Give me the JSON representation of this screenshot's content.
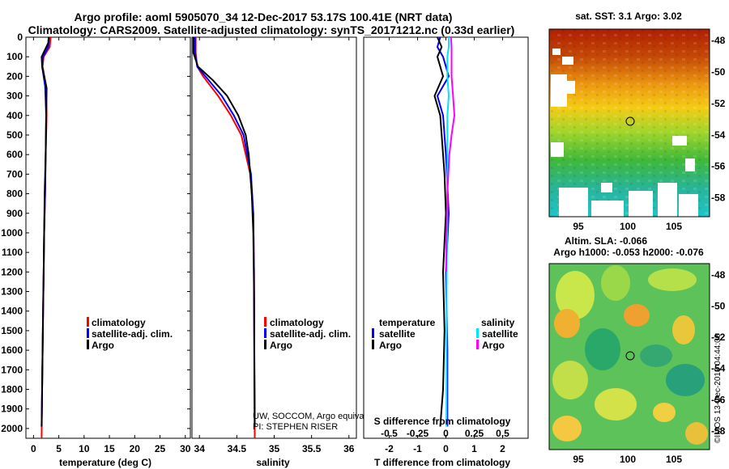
{
  "header": {
    "title_line1": "Argo profile: aoml 5905070_34 12-Dec-2017 53.17S 100.41E (NRT data)",
    "title_line2": "Climatology: CARS2009. Satellite-adjusted climatology: synTS_20171212.nc (0.33d earlier)"
  },
  "colors": {
    "climatology": "#ff0000",
    "satellite": "#0000ff",
    "argo": "#000000",
    "sat_salinity": "#00e5ff",
    "argo_salinity": "#ff00ff"
  },
  "depth_axis": {
    "min": 0,
    "max": 2050,
    "ticks": [
      0,
      100,
      200,
      300,
      400,
      500,
      600,
      700,
      800,
      900,
      1000,
      1100,
      1200,
      1300,
      1400,
      1500,
      1600,
      1700,
      1800,
      1900,
      2000
    ]
  },
  "panels": {
    "temperature": {
      "xlabel": "temperature (deg C)",
      "ticks": [
        0,
        5,
        10,
        15,
        20,
        25,
        30
      ],
      "xlim": [
        -1.5,
        31
      ]
    },
    "salinity": {
      "xlabel": "salinity",
      "ticks": [
        34,
        34.5,
        35,
        35.5,
        36
      ],
      "xlim": [
        33.9,
        36.1
      ]
    },
    "difference": {
      "xlabel": "T difference from climatology",
      "xlabel_top": "S difference from climatology",
      "ticks": [
        -2,
        -1,
        0,
        1,
        2
      ],
      "ticks_top": [
        -0.5,
        -0.25,
        0,
        0.25,
        0.5
      ],
      "xlim": [
        -2.9,
        2.9
      ]
    }
  },
  "legend": {
    "climatology": "climatology",
    "satellite_adj": "satellite-adj. clim.",
    "argo": "Argo"
  },
  "diff_legend": {
    "temperature_header": "temperature",
    "salinity_header": "salinity",
    "satellite": "satellite",
    "argo": "Argo"
  },
  "credits": {
    "line1": "UW, SOCCOM, Argo equivalent",
    "line2": "PI: STEPHEN RISER"
  },
  "maps": {
    "sst_title": "sat. SST: 3.1 Argo: 3.02",
    "sla_title_line1": "Altim. SLA: -0.066",
    "sla_title_line2": "Argo h1000: -0.053 h2000: -0.076",
    "lat_ticks": [
      "-48",
      "-50",
      "-52",
      "-54",
      "-56",
      "-58"
    ],
    "lon_ticks": [
      "95",
      "100",
      "105"
    ],
    "watermark": "©IMOS 13-Dec-2018 04:44:06"
  },
  "chart_data": [
    {
      "type": "line",
      "title": "temperature",
      "xlabel": "temperature (deg C)",
      "ylabel": "depth",
      "series": [
        {
          "name": "climatology",
          "x": [
            3.4,
            3.2,
            2.0,
            1.8,
            2.5,
            2.6,
            2.4,
            2.3,
            2.1,
            2.0,
            1.9,
            1.8,
            1.7,
            1.6
          ],
          "y": [
            0,
            50,
            100,
            150,
            250,
            400,
            600,
            800,
            1000,
            1200,
            1400,
            1600,
            1800,
            2050
          ]
        },
        {
          "name": "satellite-adj. clim.",
          "x": [
            3.1,
            2.9,
            1.9,
            1.7,
            2.3,
            2.5,
            2.4,
            2.3,
            2.1,
            2.0,
            1.9,
            1.8,
            1.7,
            1.6
          ],
          "y": [
            0,
            50,
            100,
            150,
            250,
            400,
            600,
            800,
            1000,
            1200,
            1400,
            1600,
            1800,
            1990
          ]
        },
        {
          "name": "Argo",
          "x": [
            3.0,
            2.9,
            1.6,
            1.7,
            2.6,
            2.5,
            2.4,
            2.2,
            2.1,
            2.0,
            1.9,
            1.8,
            1.7,
            1.6
          ],
          "y": [
            0,
            30,
            100,
            150,
            260,
            400,
            600,
            800,
            1000,
            1200,
            1400,
            1600,
            1800,
            1990
          ]
        }
      ]
    },
    {
      "type": "line",
      "title": "salinity",
      "xlabel": "salinity",
      "ylabel": "depth",
      "series": [
        {
          "name": "climatology",
          "x": [
            33.95,
            33.95,
            33.97,
            34.05,
            34.25,
            34.42,
            34.56,
            34.68,
            34.72,
            34.73,
            34.735,
            34.74
          ],
          "y": [
            0,
            80,
            150,
            200,
            300,
            400,
            500,
            700,
            900,
            1200,
            1600,
            2050
          ]
        },
        {
          "name": "satellite-adj. clim.",
          "x": [
            33.94,
            33.94,
            33.97,
            34.08,
            34.3,
            34.46,
            34.59,
            34.69,
            34.72,
            34.73,
            34.735,
            34.74
          ],
          "y": [
            0,
            80,
            150,
            200,
            300,
            400,
            500,
            700,
            900,
            1200,
            1600,
            1990
          ]
        },
        {
          "name": "Argo",
          "x": [
            33.92,
            33.92,
            33.98,
            34.18,
            34.37,
            34.52,
            34.62,
            34.66,
            34.7,
            34.72,
            34.73,
            34.735,
            34.74
          ],
          "y": [
            0,
            80,
            150,
            220,
            300,
            400,
            500,
            600,
            800,
            1000,
            1300,
            1700,
            1990
          ]
        }
      ]
    },
    {
      "type": "line",
      "title": "difference from climatology",
      "xlabel": "T difference from climatology",
      "series": [
        {
          "name": "temperature satellite",
          "x": [
            -0.2,
            -0.3,
            -0.1,
            0.1,
            -0.3,
            -0.1,
            0,
            0.1,
            0,
            0.05,
            0.05
          ],
          "y": [
            0,
            50,
            100,
            200,
            300,
            400,
            600,
            900,
            1200,
            1600,
            1990
          ]
        },
        {
          "name": "temperature Argo",
          "x": [
            -0.3,
            -0.15,
            -0.3,
            -0.1,
            -0.4,
            -0.2,
            -0.05,
            0,
            -0.1,
            -0.05,
            -0.1,
            -0.2
          ],
          "y": [
            0,
            50,
            100,
            200,
            300,
            400,
            700,
            900,
            1200,
            1500,
            1800,
            1990
          ]
        },
        {
          "name": "salinity satellite",
          "x": [
            0.1,
            0.1,
            0.05,
            0.05,
            0.1,
            0.05,
            0.05,
            0.05,
            0.03,
            0.02,
            0.02,
            0.02
          ],
          "y": [
            0,
            50,
            100,
            200,
            300,
            400,
            600,
            900,
            1200,
            1600,
            1800,
            1990
          ]
        },
        {
          "name": "salinity Argo",
          "x": [
            0.18,
            0.2,
            0.2,
            0.2,
            0.25,
            0.3,
            0.2,
            0.12,
            0.05,
            0.02,
            0.01
          ],
          "y": [
            0,
            50,
            100,
            200,
            300,
            400,
            500,
            600,
            800,
            1000,
            1200
          ]
        }
      ]
    }
  ]
}
